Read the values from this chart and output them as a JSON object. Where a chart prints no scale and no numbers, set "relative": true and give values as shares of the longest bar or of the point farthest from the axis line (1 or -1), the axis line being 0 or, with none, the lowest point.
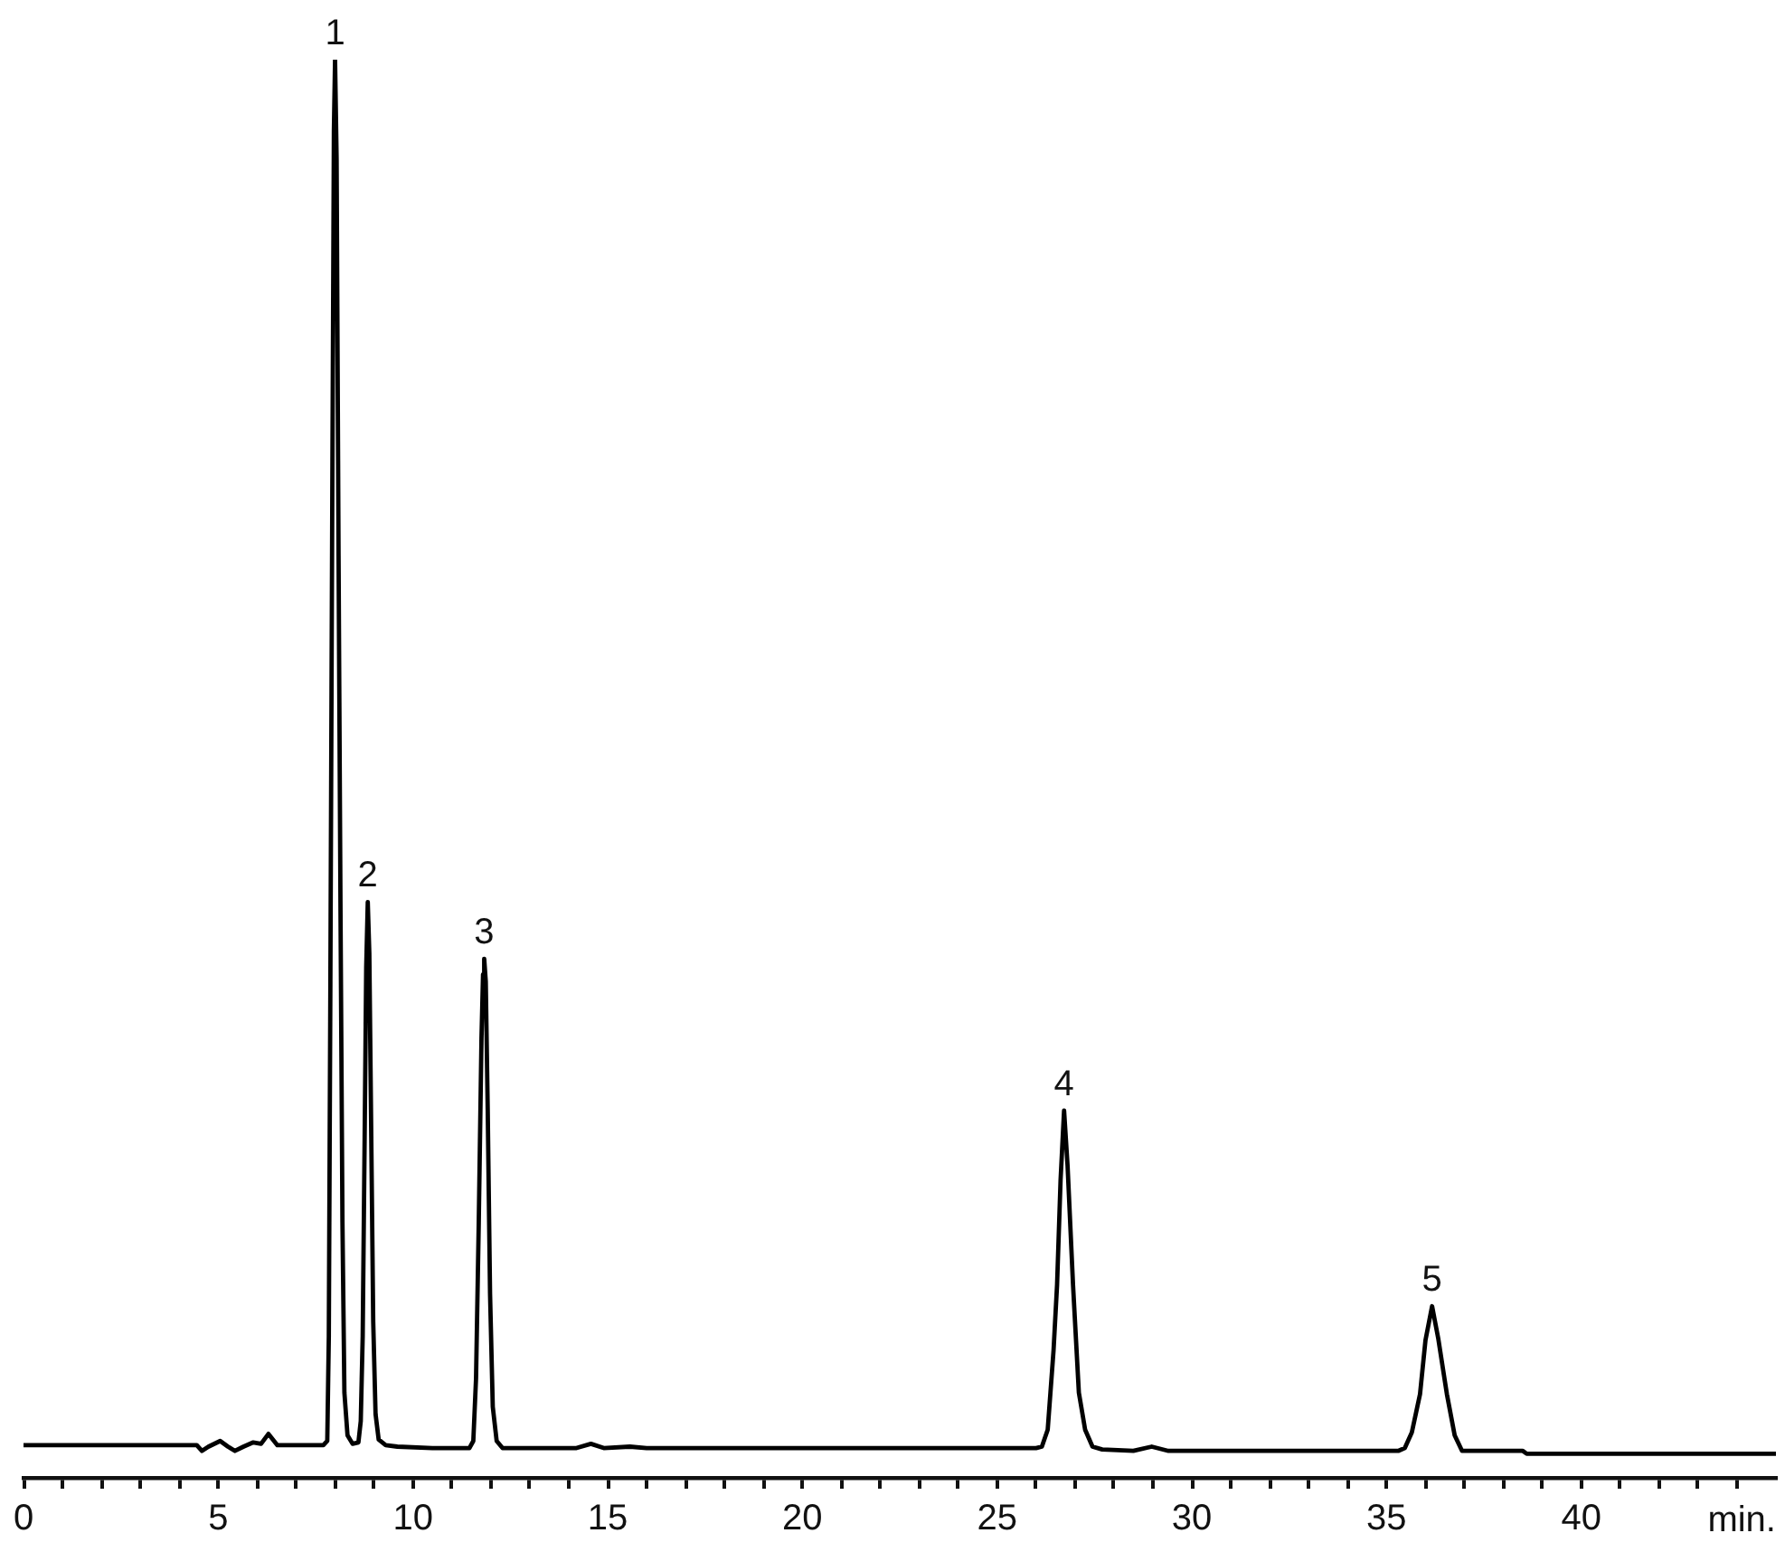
{
  "chart_data": {
    "type": "line",
    "relative": true,
    "xlabel": "min.",
    "x": [
      0,
      2,
      4,
      4.45,
      4.58,
      4.75,
      5.05,
      5.25,
      5.43,
      5.65,
      5.9,
      6.1,
      6.29,
      6.52,
      7,
      7.7,
      7.8,
      7.84,
      7.88,
      7.93,
      7.97,
      8,
      8.04,
      8.09,
      8.14,
      8.19,
      8.24,
      8.32,
      8.45,
      8.6,
      8.66,
      8.71,
      8.76,
      8.8,
      8.84,
      8.88,
      8.93,
      8.98,
      9.04,
      9.12,
      9.3,
      9.6,
      10.5,
      11.45,
      11.55,
      11.62,
      11.69,
      11.76,
      11.8,
      11.83,
      11.87,
      11.92,
      11.98,
      12.05,
      12.15,
      12.3,
      14.2,
      14.57,
      14.9,
      15.57,
      16,
      20,
      26,
      26.15,
      26.3,
      26.45,
      26.54,
      26.63,
      26.72,
      26.81,
      26.95,
      27.1,
      27.26,
      27.45,
      27.7,
      28.5,
      28.97,
      29.4,
      35.3,
      35.47,
      35.65,
      35.86,
      36,
      36.17,
      36.33,
      36.55,
      36.75,
      36.94,
      38.5,
      38.6,
      43.8,
      43.9,
      45
    ],
    "series": [
      {
        "color": "#000000",
        "values": [
          0.023,
          0.023,
          0.023,
          0.023,
          0.019,
          0.022,
          0.026,
          0.022,
          0.019,
          0.022,
          0.025,
          0.024,
          0.031,
          0.023,
          0.023,
          0.023,
          0.026,
          0.1,
          0.35,
          0.7,
          0.95,
          1,
          0.93,
          0.65,
          0.4,
          0.18,
          0.06,
          0.03,
          0.024,
          0.025,
          0.04,
          0.1,
          0.24,
          0.36,
          0.406,
          0.37,
          0.24,
          0.11,
          0.045,
          0.027,
          0.023,
          0.022,
          0.021,
          0.021,
          0.026,
          0.07,
          0.18,
          0.31,
          0.355,
          0.366,
          0.35,
          0.26,
          0.13,
          0.05,
          0.026,
          0.021,
          0.021,
          0.024,
          0.021,
          0.022,
          0.021,
          0.021,
          0.021,
          0.022,
          0.034,
          0.09,
          0.136,
          0.21,
          0.259,
          0.22,
          0.136,
          0.06,
          0.034,
          0.022,
          0.02,
          0.019,
          0.022,
          0.019,
          0.019,
          0.021,
          0.032,
          0.059,
          0.097,
          0.121,
          0.098,
          0.059,
          0.03,
          0.019,
          0.019,
          0.017,
          0.017,
          0.017,
          0.017
        ]
      }
    ],
    "xlim": [
      0,
      45
    ],
    "xticks": [
      0,
      {
        "value": 1,
        "label": null
      },
      {
        "value": 2,
        "label": null
      },
      {
        "value": 3,
        "label": null
      },
      {
        "value": 4,
        "label": null
      },
      5,
      {
        "value": 6,
        "label": null
      },
      {
        "value": 7,
        "label": null
      },
      {
        "value": 8,
        "label": null
      },
      {
        "value": 9,
        "label": null
      },
      10,
      {
        "value": 11,
        "label": null
      },
      {
        "value": 12,
        "label": null
      },
      {
        "value": 13,
        "label": null
      },
      {
        "value": 14,
        "label": null
      },
      15,
      {
        "value": 16,
        "label": null
      },
      {
        "value": 17,
        "label": null
      },
      {
        "value": 18,
        "label": null
      },
      {
        "value": 19,
        "label": null
      },
      20,
      {
        "value": 21,
        "label": null
      },
      {
        "value": 22,
        "label": null
      },
      {
        "value": 23,
        "label": null
      },
      {
        "value": 24,
        "label": null
      },
      25,
      {
        "value": 26,
        "label": null
      },
      {
        "value": 27,
        "label": null
      },
      {
        "value": 28,
        "label": null
      },
      {
        "value": 29,
        "label": null
      },
      30,
      {
        "value": 31,
        "label": null
      },
      {
        "value": 32,
        "label": null
      },
      {
        "value": 33,
        "label": null
      },
      {
        "value": 34,
        "label": null
      },
      35,
      {
        "value": 36,
        "label": null
      },
      {
        "value": 37,
        "label": null
      },
      {
        "value": 38,
        "label": null
      },
      {
        "value": 39,
        "label": null
      },
      40,
      {
        "value": 41,
        "label": null
      },
      {
        "value": 42,
        "label": null
      },
      {
        "value": 43,
        "label": null
      },
      {
        "value": 44,
        "label": null
      }
    ],
    "annotations": [
      {
        "text": "1",
        "x": 8,
        "y": 1
      },
      {
        "text": "2",
        "x": 8.84,
        "y": 0.406
      },
      {
        "text": "3",
        "x": 11.83,
        "y": 0.366
      },
      {
        "text": "4",
        "x": 26.72,
        "y": 0.259
      },
      {
        "text": "5",
        "x": 36.17,
        "y": 0.121
      }
    ],
    "grid": false,
    "legend": false,
    "marker": "none",
    "line_style": "solid"
  }
}
